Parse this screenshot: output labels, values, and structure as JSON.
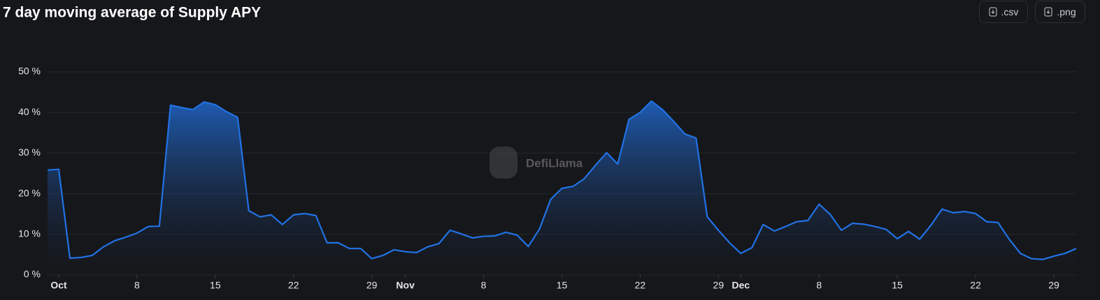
{
  "chart_data": {
    "type": "area",
    "title": "7 day moving average of Supply APY",
    "watermark": "DefiLlama",
    "buttons": [
      ".csv",
      ".png"
    ],
    "color": "#2172e5",
    "grid": true,
    "categories": [
      "Sep 30",
      "Oct 1",
      "Oct 2",
      "Oct 3",
      "Oct 4",
      "Oct 5",
      "Oct 6",
      "Oct 7",
      "Oct 8",
      "Oct 9",
      "Oct 10",
      "Oct 11",
      "Oct 12",
      "Oct 13",
      "Oct 14",
      "Oct 15",
      "Oct 16",
      "Oct 17",
      "Oct 18",
      "Oct 19",
      "Oct 20",
      "Oct 21",
      "Oct 22",
      "Oct 23",
      "Oct 24",
      "Oct 25",
      "Oct 26",
      "Oct 27",
      "Oct 28",
      "Oct 29",
      "Oct 30",
      "Oct 31",
      "Nov 1",
      "Nov 2",
      "Nov 3",
      "Nov 4",
      "Nov 5",
      "Nov 6",
      "Nov 7",
      "Nov 8",
      "Nov 9",
      "Nov 10",
      "Nov 11",
      "Nov 12",
      "Nov 13",
      "Nov 14",
      "Nov 15",
      "Nov 16",
      "Nov 17",
      "Nov 18",
      "Nov 19",
      "Nov 20",
      "Nov 21",
      "Nov 22",
      "Nov 23",
      "Nov 24",
      "Nov 25",
      "Nov 26",
      "Nov 27",
      "Nov 28",
      "Nov 29",
      "Nov 30",
      "Dec 1",
      "Dec 2",
      "Dec 3",
      "Dec 4",
      "Dec 5",
      "Dec 6",
      "Dec 7",
      "Dec 8",
      "Dec 9",
      "Dec 10",
      "Dec 11",
      "Dec 12",
      "Dec 13",
      "Dec 14",
      "Dec 15",
      "Dec 16",
      "Dec 17",
      "Dec 18",
      "Dec 19",
      "Dec 20",
      "Dec 21",
      "Dec 22",
      "Dec 23",
      "Dec 24",
      "Dec 25",
      "Dec 26",
      "Dec 27",
      "Dec 28",
      "Dec 29",
      "Dec 30",
      "Dec 31"
    ],
    "values": [
      25.8,
      26.0,
      4.1,
      4.3,
      4.8,
      6.9,
      8.4,
      9.3,
      10.3,
      11.9,
      12.0,
      41.8,
      41.2,
      40.7,
      42.6,
      41.9,
      40.2,
      38.8,
      15.8,
      14.3,
      14.8,
      12.4,
      14.8,
      15.1,
      14.6,
      7.9,
      7.9,
      6.5,
      6.5,
      4.0,
      4.8,
      6.2,
      5.7,
      5.5,
      6.9,
      7.7,
      11.0,
      10.1,
      9.1,
      9.5,
      9.6,
      10.5,
      9.8,
      7.0,
      11.3,
      18.6,
      21.3,
      21.8,
      23.7,
      27.0,
      30.1,
      27.3,
      38.3,
      40.0,
      42.8,
      40.7,
      37.8,
      34.7,
      33.7,
      14.3,
      11.0,
      7.9,
      5.3,
      6.7,
      12.4,
      10.8,
      11.9,
      13.1,
      13.4,
      17.4,
      14.9,
      11.0,
      12.7,
      12.5,
      11.9,
      11.2,
      8.9,
      10.7,
      8.8,
      12.2,
      16.2,
      15.3,
      15.6,
      15.1,
      13.1,
      12.9,
      8.8,
      5.3,
      4.0,
      3.8,
      4.6,
      5.3,
      6.5
    ],
    "ylim": [
      0,
      50
    ],
    "yticks": [
      {
        "value": 0,
        "label": "0 %"
      },
      {
        "value": 10,
        "label": "10 %"
      },
      {
        "value": 20,
        "label": "20 %"
      },
      {
        "value": 30,
        "label": "30 %"
      },
      {
        "value": 40,
        "label": "40 %"
      },
      {
        "value": 50,
        "label": "50 %"
      }
    ],
    "xticks": [
      {
        "value": "Oct 1",
        "label": "Oct"
      },
      {
        "value": "Oct 8",
        "label": "8"
      },
      {
        "value": "Oct 15",
        "label": "15"
      },
      {
        "value": "Oct 22",
        "label": "22"
      },
      {
        "value": "Oct 29",
        "label": "29"
      },
      {
        "value": "Nov 1",
        "label": "Nov"
      },
      {
        "value": "Nov 8",
        "label": "8"
      },
      {
        "value": "Nov 15",
        "label": "15"
      },
      {
        "value": "Nov 22",
        "label": "22"
      },
      {
        "value": "Nov 29",
        "label": "29"
      },
      {
        "value": "Dec 1",
        "label": "Dec"
      },
      {
        "value": "Dec 8",
        "label": "8"
      },
      {
        "value": "Dec 15",
        "label": "15"
      },
      {
        "value": "Dec 22",
        "label": "22"
      },
      {
        "value": "Dec 29",
        "label": "29"
      }
    ]
  }
}
